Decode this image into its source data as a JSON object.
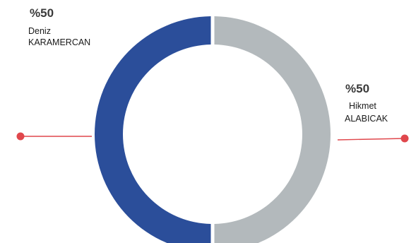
{
  "chart_data": {
    "type": "pie",
    "variant": "donut",
    "title": "",
    "slices": [
      {
        "percent_label": "%50",
        "name_line1": "Deniz",
        "name_line2": "KARAMERCAN",
        "value": 50,
        "color": "#2b4e9a"
      },
      {
        "percent_label": "%50",
        "name_line1": "Hikmet",
        "name_line2": "ALABICAK",
        "value": 50,
        "color": "#b3b9bc"
      }
    ],
    "legend": "none",
    "leader_color": "#e0474c"
  }
}
